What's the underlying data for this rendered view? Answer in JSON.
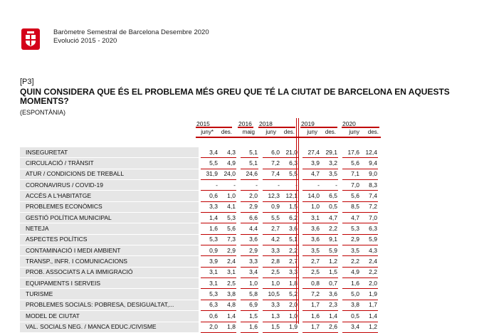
{
  "header": {
    "title": "Baròmetre Semestral de Barcelona Desembre 2020",
    "subtitle": "Evolució 2015 - 2020"
  },
  "question": {
    "code": "[P3]",
    "title": "QUIN CONSIDERA QUE ÉS EL PROBLEMA MÉS GREU QUE TÉ LA CIUTAT DE BARCELONA EN AQUESTS MOMENTS?",
    "type": "(ESPONTÀNIA)"
  },
  "years": [
    "2015",
    "2016",
    "2018",
    "2019",
    "2020"
  ],
  "columns": [
    "juny*",
    "des.",
    "maig",
    "juny",
    "des.",
    "juny",
    "des.",
    "juny",
    "des."
  ],
  "rows": [
    {
      "label": "INSEGURETAT",
      "values": [
        "3,4",
        "4,3",
        "5,1",
        "6,0",
        "21,0",
        "27,4",
        "29,1",
        "17,6",
        "12,4"
      ]
    },
    {
      "label": "CIRCULACIÓ / TRÀNSIT",
      "values": [
        "5,5",
        "4,9",
        "5,1",
        "7,2",
        "6,3",
        "3,9",
        "3,2",
        "5,6",
        "9,4"
      ]
    },
    {
      "label": "ATUR / CONDICIONS DE TREBALL",
      "values": [
        "31,9",
        "24,0",
        "24,6",
        "7,4",
        "5,5",
        "4,7",
        "3,5",
        "7,1",
        "9,0"
      ]
    },
    {
      "label": "CORONAVIRUS / COVID-19",
      "values": [
        "-",
        "-",
        "-",
        "-",
        "-",
        "-",
        "-",
        "7,0",
        "8,3"
      ]
    },
    {
      "label": "ACCÉS A L'HABITATGE",
      "values": [
        "0,6",
        "1,0",
        "2,0",
        "12,3",
        "12,1",
        "14,0",
        "6,5",
        "5,6",
        "7,4"
      ]
    },
    {
      "label": "PROBLEMES ECONÒMICS",
      "values": [
        "3,3",
        "4,1",
        "2,9",
        "0,9",
        "1,5",
        "1,0",
        "0,5",
        "8,5",
        "7,2"
      ]
    },
    {
      "label": "GESTIÓ POLÍTICA MUNICIPAL",
      "values": [
        "1,4",
        "5,3",
        "6,6",
        "5,5",
        "6,2",
        "3,1",
        "4,7",
        "4,7",
        "7,0"
      ]
    },
    {
      "label": "NETEJA",
      "values": [
        "1,6",
        "5,6",
        "4,4",
        "2,7",
        "3,6",
        "3,6",
        "2,2",
        "5,3",
        "6,3"
      ]
    },
    {
      "label": "ASPECTES POLÍTICS",
      "values": [
        "5,3",
        "7,3",
        "3,6",
        "4,2",
        "5,1",
        "3,6",
        "9,1",
        "2,9",
        "5,9"
      ]
    },
    {
      "label": "CONTAMINACIÓ I MEDI AMBIENT",
      "values": [
        "0,9",
        "2,9",
        "2,9",
        "3,3",
        "2,2",
        "3,5",
        "5,9",
        "3,5",
        "4,3"
      ]
    },
    {
      "label": "TRANSP., INFR. I COMUNICACIONS",
      "values": [
        "3,9",
        "2,4",
        "3,3",
        "2,8",
        "2,7",
        "2,7",
        "1,2",
        "2,2",
        "2,4"
      ]
    },
    {
      "label": "PROB. ASSOCIATS A LA IMMIGRACIÓ",
      "values": [
        "3,1",
        "3,1",
        "3,4",
        "2,5",
        "3,3",
        "2,5",
        "1,5",
        "4,9",
        "2,2"
      ]
    },
    {
      "label": "EQUIPAMENTS I SERVEIS",
      "values": [
        "3,1",
        "2,5",
        "1,0",
        "1,0",
        "1,8",
        "0,8",
        "0,7",
        "1,6",
        "2,0"
      ]
    },
    {
      "label": "TURISME",
      "values": [
        "5,3",
        "3,8",
        "5,8",
        "10,5",
        "5,2",
        "7,2",
        "3,6",
        "5,0",
        "1,9"
      ]
    },
    {
      "label": "PROBLEMES SOCIALS: POBRESA, DESIGUALTAT,...",
      "values": [
        "6,3",
        "4,8",
        "6,9",
        "3,3",
        "2,0",
        "1,7",
        "2,3",
        "3,8",
        "1,7"
      ]
    },
    {
      "label": "MODEL DE CIUTAT",
      "values": [
        "0,6",
        "1,4",
        "1,5",
        "1,3",
        "1,0",
        "1,6",
        "1,4",
        "0,5",
        "1,4"
      ]
    },
    {
      "label": "VAL. SOCIALS NEG. / MANCA EDUC./CIVISME",
      "values": [
        "2,0",
        "1,8",
        "1,6",
        "1,5",
        "1,9",
        "1,7",
        "2,6",
        "3,4",
        "1,2"
      ]
    }
  ],
  "colors": {
    "accent": "#c00000",
    "label_bg": "#e6e6e6"
  }
}
